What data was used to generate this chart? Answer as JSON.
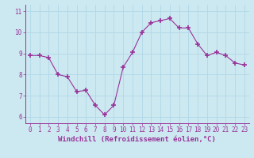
{
  "x": [
    0,
    1,
    2,
    3,
    4,
    5,
    6,
    7,
    8,
    9,
    10,
    11,
    12,
    13,
    14,
    15,
    16,
    17,
    18,
    19,
    20,
    21,
    22,
    23
  ],
  "y": [
    8.9,
    8.9,
    8.8,
    8.0,
    7.9,
    7.2,
    7.25,
    6.55,
    6.1,
    6.55,
    8.35,
    9.05,
    10.0,
    10.45,
    10.55,
    10.65,
    10.2,
    10.2,
    9.45,
    8.9,
    9.05,
    8.9,
    8.55,
    8.45
  ],
  "line_color": "#993399",
  "marker": "+",
  "markersize": 4.0,
  "linewidth": 0.8,
  "xlabel": "Windchill (Refroidissement éolien,°C)",
  "xlim": [
    -0.5,
    23.5
  ],
  "ylim": [
    5.7,
    11.3
  ],
  "yticks": [
    6,
    7,
    8,
    9,
    10,
    11
  ],
  "xticks": [
    0,
    1,
    2,
    3,
    4,
    5,
    6,
    7,
    8,
    9,
    10,
    11,
    12,
    13,
    14,
    15,
    16,
    17,
    18,
    19,
    20,
    21,
    22,
    23
  ],
  "background_color": "#cce8f0",
  "grid_color": "#b0d8e8",
  "tick_labelsize": 5.5,
  "xlabel_fontsize": 6.5,
  "xlabel_color": "#993399",
  "tick_color": "#993399",
  "spine_color": "#993399"
}
